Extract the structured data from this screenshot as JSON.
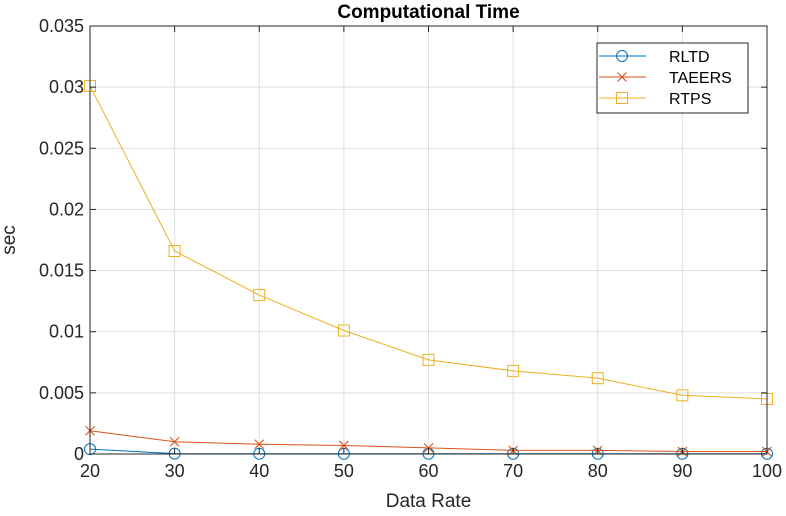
{
  "chart_data": {
    "type": "line",
    "title": "Computational Time",
    "xlabel": "Data Rate",
    "ylabel": "sec",
    "x": [
      20,
      30,
      40,
      50,
      60,
      70,
      80,
      90,
      100
    ],
    "xlim": [
      20,
      100
    ],
    "ylim": [
      0,
      0.035
    ],
    "xticks": [
      20,
      30,
      40,
      50,
      60,
      70,
      80,
      90,
      100
    ],
    "xtick_labels": [
      "20",
      "30",
      "40",
      "50",
      "60",
      "70",
      "80",
      "90",
      "100"
    ],
    "yticks": [
      0,
      0.005,
      0.01,
      0.015,
      0.02,
      0.025,
      0.03,
      0.035
    ],
    "ytick_labels": [
      "0",
      "0.005",
      "0.01",
      "0.015",
      "0.02",
      "0.025",
      "0.03",
      "0.035"
    ],
    "grid": true,
    "legend_position": "top-right",
    "series": [
      {
        "name": "RLTD",
        "marker": "circle",
        "color": "#0072BD",
        "values": [
          0.0004,
          3e-05,
          2e-05,
          2e-05,
          2e-05,
          2e-05,
          2e-05,
          2e-05,
          2e-05
        ]
      },
      {
        "name": "TAEERS",
        "marker": "x",
        "color": "#D95319",
        "values": [
          0.0019,
          0.001,
          0.0008,
          0.0007,
          0.0005,
          0.0003,
          0.0003,
          0.0002,
          0.0002
        ]
      },
      {
        "name": "RTPS",
        "marker": "square",
        "color": "#EDB120",
        "values": [
          0.0301,
          0.0166,
          0.013,
          0.0101,
          0.0077,
          0.0068,
          0.0062,
          0.0048,
          0.0045
        ]
      }
    ]
  }
}
